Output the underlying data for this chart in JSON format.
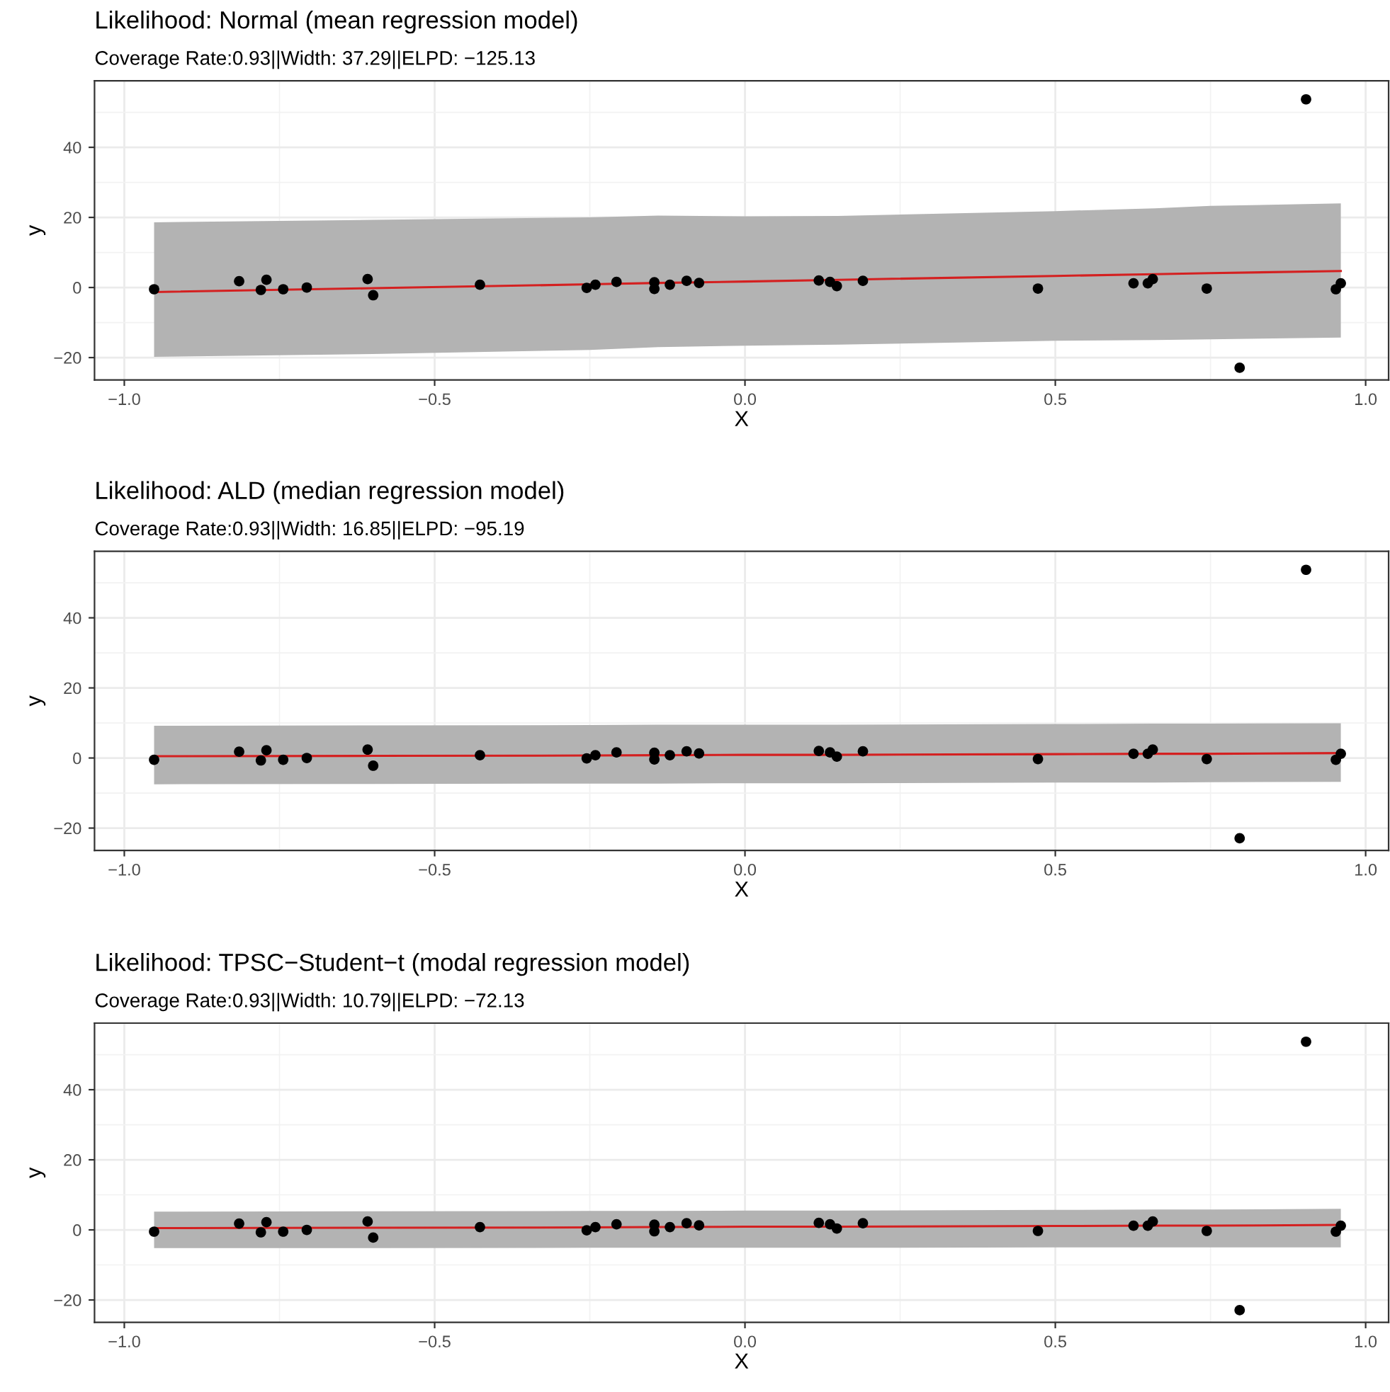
{
  "chart_data": [
    {
      "type": "scatter",
      "title": "Likelihood: Normal (mean regression model)",
      "subtitle": "Coverage Rate:0.93||Width: 37.29||ELPD: −125.13",
      "xlabel": "X",
      "ylabel": "y",
      "xlim": [
        -1.048,
        1.037
      ],
      "ylim": [
        -26.4,
        59
      ],
      "xticks": [
        {
          "value": -1.0,
          "label": "−1.0"
        },
        {
          "value": -0.5,
          "label": "−0.5"
        },
        {
          "value": 0.0,
          "label": "0.0"
        },
        {
          "value": 0.5,
          "label": "0.5"
        },
        {
          "value": 1.0,
          "label": "1.0"
        }
      ],
      "yticks": [
        -20,
        0,
        20,
        40
      ],
      "grid": true,
      "legend": false,
      "series": [
        {
          "type": "line",
          "color": "#d42020",
          "x": [
            -0.952,
            -0.6,
            -0.25,
            -0.14,
            0,
            0.15,
            0.5,
            0.66,
            0.75,
            0.96
          ],
          "values": [
            -1.3,
            -0.2,
            0.9,
            1.3,
            1.7,
            2.2,
            3.3,
            3.8,
            4.1,
            4.7
          ],
          "upper": [
            18.6,
            19.3,
            20.0,
            20.5,
            20.3,
            20.4,
            21.8,
            22.6,
            23.3,
            24.0
          ],
          "lower": [
            -19.8,
            -19.0,
            -17.8,
            -17.0,
            -16.6,
            -16.3,
            -15.2,
            -15.0,
            -14.8,
            -14.3
          ]
        },
        {
          "type": "scatter",
          "color": "#000000",
          "marker": "circle",
          "x": [
            -0.952,
            -0.815,
            -0.78,
            -0.771,
            -0.744,
            -0.706,
            -0.608,
            -0.599,
            -0.427,
            -0.255,
            -0.241,
            -0.207,
            -0.146,
            -0.146,
            -0.121,
            -0.094,
            -0.074,
            0.119,
            0.137,
            0.148,
            0.19,
            0.472,
            0.626,
            0.649,
            0.657,
            0.744,
            0.797,
            0.904,
            0.952,
            0.96
          ],
          "values": [
            -0.5,
            1.8,
            -0.7,
            2.2,
            -0.5,
            0.0,
            2.4,
            -2.2,
            0.8,
            -0.1,
            0.8,
            1.6,
            1.5,
            -0.4,
            0.8,
            1.9,
            1.3,
            2.0,
            1.6,
            0.4,
            1.9,
            -0.3,
            1.2,
            1.2,
            2.4,
            -0.3,
            -22.9,
            53.7,
            -0.5,
            1.2
          ]
        }
      ]
    },
    {
      "type": "scatter",
      "title": "Likelihood: ALD (median regression model)",
      "subtitle": "Coverage Rate:0.93||Width: 16.85||ELPD: −95.19",
      "xlabel": "X",
      "ylabel": "y",
      "xlim": [
        -1.048,
        1.037
      ],
      "ylim": [
        -26.4,
        59
      ],
      "xticks": [
        {
          "value": -1.0,
          "label": "−1.0"
        },
        {
          "value": -0.5,
          "label": "−0.5"
        },
        {
          "value": 0.0,
          "label": "0.0"
        },
        {
          "value": 0.5,
          "label": "0.5"
        },
        {
          "value": 1.0,
          "label": "1.0"
        }
      ],
      "yticks": [
        -20,
        0,
        20,
        40
      ],
      "grid": true,
      "legend": false,
      "series": [
        {
          "type": "line",
          "color": "#d42020",
          "x": [
            -0.952,
            -0.6,
            -0.25,
            -0.14,
            0,
            0.15,
            0.5,
            0.66,
            0.75,
            0.96
          ],
          "values": [
            0.5,
            0.6,
            0.7,
            0.8,
            0.9,
            0.9,
            1.1,
            1.2,
            1.2,
            1.4
          ],
          "upper": [
            9.2,
            9.3,
            9.4,
            9.5,
            9.5,
            9.5,
            9.7,
            9.8,
            9.8,
            9.9
          ],
          "lower": [
            -7.5,
            -7.4,
            -7.3,
            -7.3,
            -7.2,
            -7.2,
            -7.0,
            -7.0,
            -6.9,
            -6.8
          ]
        },
        {
          "type": "scatter",
          "color": "#000000",
          "marker": "circle",
          "x": [
            -0.952,
            -0.815,
            -0.78,
            -0.771,
            -0.744,
            -0.706,
            -0.608,
            -0.599,
            -0.427,
            -0.255,
            -0.241,
            -0.207,
            -0.146,
            -0.146,
            -0.121,
            -0.094,
            -0.074,
            0.119,
            0.137,
            0.148,
            0.19,
            0.472,
            0.626,
            0.649,
            0.657,
            0.744,
            0.797,
            0.904,
            0.952,
            0.96
          ],
          "values": [
            -0.5,
            1.8,
            -0.7,
            2.2,
            -0.5,
            0.0,
            2.4,
            -2.2,
            0.8,
            -0.1,
            0.8,
            1.6,
            1.5,
            -0.4,
            0.8,
            1.9,
            1.3,
            2.0,
            1.6,
            0.4,
            1.9,
            -0.3,
            1.2,
            1.2,
            2.4,
            -0.3,
            -22.9,
            53.7,
            -0.5,
            1.2
          ]
        }
      ]
    },
    {
      "type": "scatter",
      "title": "Likelihood: TPSC−Student−t (modal regression model)",
      "subtitle": "Coverage Rate:0.93||Width: 10.79||ELPD: −72.13",
      "xlabel": "X",
      "ylabel": "y",
      "xlim": [
        -1.048,
        1.037
      ],
      "ylim": [
        -26.4,
        59
      ],
      "xticks": [
        {
          "value": -1.0,
          "label": "−1.0"
        },
        {
          "value": -0.5,
          "label": "−0.5"
        },
        {
          "value": 0.0,
          "label": "0.0"
        },
        {
          "value": 0.5,
          "label": "0.5"
        },
        {
          "value": 1.0,
          "label": "1.0"
        }
      ],
      "yticks": [
        -20,
        0,
        20,
        40
      ],
      "grid": true,
      "legend": false,
      "series": [
        {
          "type": "line",
          "color": "#d42020",
          "x": [
            -0.952,
            -0.6,
            -0.25,
            -0.14,
            0,
            0.15,
            0.5,
            0.66,
            0.75,
            0.96
          ],
          "values": [
            0.5,
            0.6,
            0.7,
            0.8,
            0.9,
            0.9,
            1.1,
            1.2,
            1.2,
            1.4
          ],
          "upper": [
            5.2,
            5.3,
            5.4,
            5.4,
            5.5,
            5.5,
            5.7,
            5.8,
            5.8,
            6.0
          ],
          "lower": [
            -5.2,
            -5.2,
            -5.1,
            -5.1,
            -5.1,
            -5.1,
            -5.0,
            -5.0,
            -5.0,
            -5.0
          ]
        },
        {
          "type": "scatter",
          "color": "#000000",
          "marker": "circle",
          "x": [
            -0.952,
            -0.815,
            -0.78,
            -0.771,
            -0.744,
            -0.706,
            -0.608,
            -0.599,
            -0.427,
            -0.255,
            -0.241,
            -0.207,
            -0.146,
            -0.146,
            -0.121,
            -0.094,
            -0.074,
            0.119,
            0.137,
            0.148,
            0.19,
            0.472,
            0.626,
            0.649,
            0.657,
            0.744,
            0.797,
            0.904,
            0.952,
            0.96
          ],
          "values": [
            -0.5,
            1.8,
            -0.7,
            2.2,
            -0.5,
            0.0,
            2.4,
            -2.2,
            0.8,
            -0.1,
            0.8,
            1.6,
            1.5,
            -0.4,
            0.8,
            1.9,
            1.3,
            2.0,
            1.6,
            0.4,
            1.9,
            -0.3,
            1.2,
            1.2,
            2.4,
            -0.3,
            -22.9,
            53.7,
            -0.5,
            1.2
          ]
        }
      ]
    }
  ]
}
